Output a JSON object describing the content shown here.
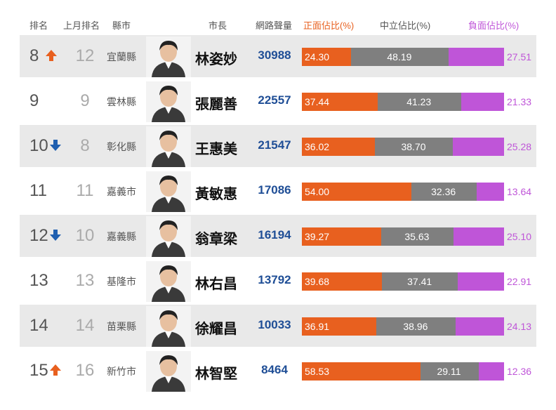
{
  "header": {
    "rank": "排名",
    "last_rank": "上月排名",
    "county": "縣市",
    "mayor": "市長",
    "volume": "網路聲量",
    "positive": "正面佔比(%)",
    "neutral": "中立佔比(%)",
    "negative": "負面佔比(%)"
  },
  "colors": {
    "positive": "#e8601f",
    "neutral": "#7f7f7f",
    "negative": "#bf55d8",
    "volume": "#1f4e96",
    "arrow_up": "#e8601f",
    "arrow_down": "#1f5fb0"
  },
  "rows": [
    {
      "rank": "8",
      "trend": "up",
      "last_rank": "12",
      "county": "宜蘭縣",
      "mayor": "林姿妙",
      "volume": "30988",
      "positive": "24.30",
      "neutral": "48.19",
      "negative": "27.51"
    },
    {
      "rank": "9",
      "trend": "none",
      "last_rank": "9",
      "county": "雲林縣",
      "mayor": "張麗善",
      "volume": "22557",
      "positive": "37.44",
      "neutral": "41.23",
      "negative": "21.33"
    },
    {
      "rank": "10",
      "trend": "down",
      "last_rank": "8",
      "county": "彰化縣",
      "mayor": "王惠美",
      "volume": "21547",
      "positive": "36.02",
      "neutral": "38.70",
      "negative": "25.28"
    },
    {
      "rank": "11",
      "trend": "none",
      "last_rank": "11",
      "county": "嘉義市",
      "mayor": "黃敏惠",
      "volume": "17086",
      "positive": "54.00",
      "neutral": "32.36",
      "negative": "13.64"
    },
    {
      "rank": "12",
      "trend": "down",
      "last_rank": "10",
      "county": "嘉義縣",
      "mayor": "翁章梁",
      "volume": "16194",
      "positive": "39.27",
      "neutral": "35.63",
      "negative": "25.10"
    },
    {
      "rank": "13",
      "trend": "none",
      "last_rank": "13",
      "county": "基隆市",
      "mayor": "林右昌",
      "volume": "13792",
      "positive": "39.68",
      "neutral": "37.41",
      "negative": "22.91"
    },
    {
      "rank": "14",
      "trend": "none",
      "last_rank": "14",
      "county": "苗栗縣",
      "mayor": "徐耀昌",
      "volume": "10033",
      "positive": "36.91",
      "neutral": "38.96",
      "negative": "24.13"
    },
    {
      "rank": "15",
      "trend": "up",
      "last_rank": "16",
      "county": "新竹市",
      "mayor": "林智堅",
      "volume": "8464",
      "positive": "58.53",
      "neutral": "29.11",
      "negative": "12.36"
    }
  ],
  "chart_data": {
    "type": "bar",
    "stacked": true,
    "categories": [
      "林姿妙",
      "張麗善",
      "王惠美",
      "黃敏惠",
      "翁章梁",
      "林右昌",
      "徐耀昌",
      "林智堅"
    ],
    "series": [
      {
        "name": "正面佔比(%)",
        "values": [
          24.3,
          37.44,
          36.02,
          54.0,
          39.27,
          39.68,
          36.91,
          58.53
        ]
      },
      {
        "name": "中立佔比(%)",
        "values": [
          48.19,
          41.23,
          38.7,
          32.36,
          35.63,
          37.41,
          38.96,
          29.11
        ]
      },
      {
        "name": "負面佔比(%)",
        "values": [
          27.51,
          21.33,
          25.28,
          13.64,
          25.1,
          22.91,
          24.13,
          12.36
        ]
      }
    ],
    "volume": [
      30988,
      22557,
      21547,
      17086,
      16194,
      13792,
      10033,
      8464
    ],
    "ylim": [
      0,
      100
    ]
  }
}
